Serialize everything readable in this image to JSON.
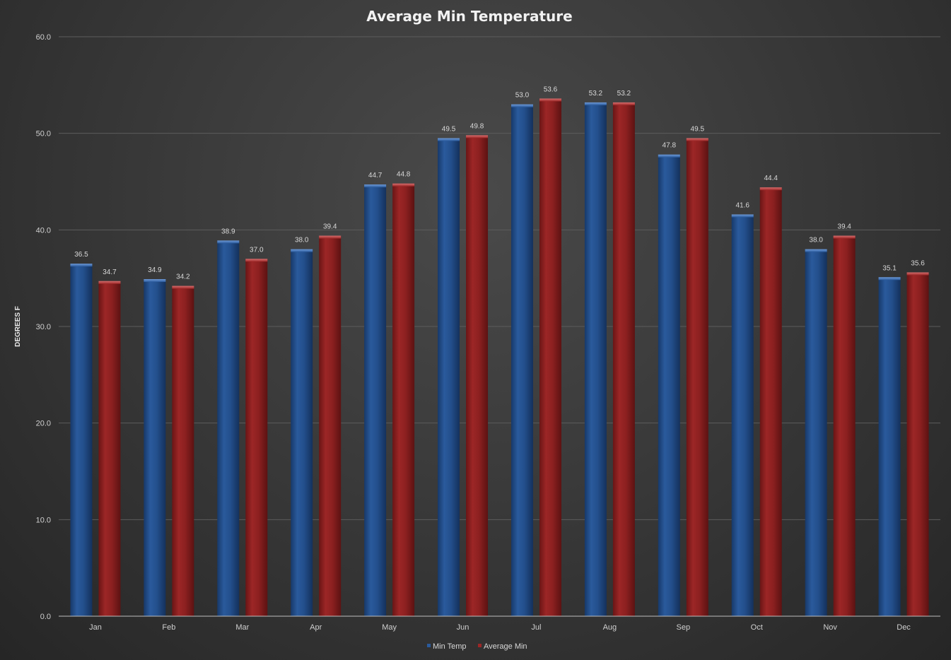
{
  "chart_data": {
    "type": "bar",
    "title": "Average Min Temperature",
    "xlabel": "",
    "ylabel": "DEGREES F",
    "ylim": [
      0,
      60
    ],
    "yticks": [
      "0.0",
      "10.0",
      "20.0",
      "30.0",
      "40.0",
      "50.0",
      "60.0"
    ],
    "grid": true,
    "legend_position": "bottom",
    "categories": [
      "Jan",
      "Feb",
      "Mar",
      "Apr",
      "May",
      "Jun",
      "Jul",
      "Aug",
      "Sep",
      "Oct",
      "Nov",
      "Dec"
    ],
    "series": [
      {
        "name": "Min Temp",
        "color": "#1f4e8c",
        "values": [
          36.5,
          34.9,
          38.9,
          38.0,
          44.7,
          49.5,
          53.0,
          53.2,
          47.8,
          41.6,
          38.0,
          35.1
        ],
        "labels": [
          "36.5",
          "34.9",
          "38.9",
          "38.0",
          "44.7",
          "49.5",
          "53.0",
          "53.2",
          "47.8",
          "41.6",
          "38.0",
          "35.1"
        ]
      },
      {
        "name": "Average Min",
        "color": "#8b1e1e",
        "values": [
          34.7,
          34.2,
          37.0,
          39.4,
          44.8,
          49.8,
          53.6,
          53.2,
          49.5,
          44.4,
          39.4,
          35.6
        ],
        "labels": [
          "34.7",
          "34.2",
          "37.0",
          "39.4",
          "44.8",
          "49.8",
          "53.6",
          "53.2",
          "49.5",
          "44.4",
          "39.4",
          "35.6"
        ]
      }
    ]
  }
}
